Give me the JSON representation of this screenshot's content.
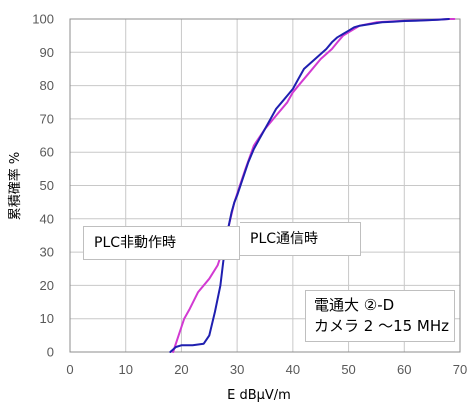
{
  "chart_data": {
    "type": "line",
    "xlabel": "E dBμV/m",
    "ylabel": "累積確率 %",
    "xlim": [
      0,
      70
    ],
    "ylim": [
      0,
      100
    ],
    "xticks": [
      0,
      10,
      20,
      30,
      40,
      50,
      60,
      70
    ],
    "yticks": [
      0,
      10,
      20,
      30,
      40,
      50,
      60,
      70,
      80,
      90,
      100
    ],
    "grid": true,
    "series": [
      {
        "name": "PLC非動作時",
        "color": "#d23ad2",
        "x": [
          18.5,
          19.5,
          20.5,
          21.5,
          23,
          25,
          26.5,
          27.5,
          28.5,
          29.5,
          30.5,
          31.5,
          33,
          35,
          37,
          39,
          40,
          41.5,
          43,
          45,
          47,
          48,
          49,
          50,
          52,
          55,
          60,
          65,
          68,
          69
        ],
        "y": [
          0,
          5,
          10,
          13,
          18,
          22,
          26,
          31,
          38,
          45,
          50,
          55,
          62,
          67,
          71,
          75,
          78,
          81,
          84,
          88,
          91,
          93,
          95,
          96,
          98,
          99,
          99.5,
          99.7,
          100,
          100
        ]
      },
      {
        "name": "PLC通信時",
        "color": "#1f1fb0",
        "x": [
          18,
          19,
          20,
          22,
          24,
          25,
          26,
          27,
          27.5,
          28,
          28.5,
          29,
          29.5,
          30,
          31,
          32,
          33,
          34,
          35,
          36,
          37,
          38,
          39,
          40,
          41,
          42,
          44,
          46,
          47,
          48,
          49,
          50,
          51,
          52,
          54,
          56,
          58,
          60,
          62,
          64,
          66,
          68
        ],
        "y": [
          0,
          1.5,
          2,
          2,
          2.5,
          5,
          12,
          20,
          27,
          33,
          38,
          42,
          45,
          47,
          52,
          57,
          61,
          64,
          67,
          70,
          73,
          75,
          77,
          79,
          82,
          85,
          88,
          91,
          93,
          94.5,
          95.5,
          96.5,
          97.5,
          98,
          98.5,
          99,
          99.2,
          99.4,
          99.5,
          99.6,
          99.8,
          100
        ]
      }
    ],
    "annotations": {
      "off_label": "PLC非動作時",
      "on_label": "PLC通信時",
      "info_line1": "電通大 ②-D",
      "info_line2": "カメラ 2 〜15 MHz"
    }
  }
}
